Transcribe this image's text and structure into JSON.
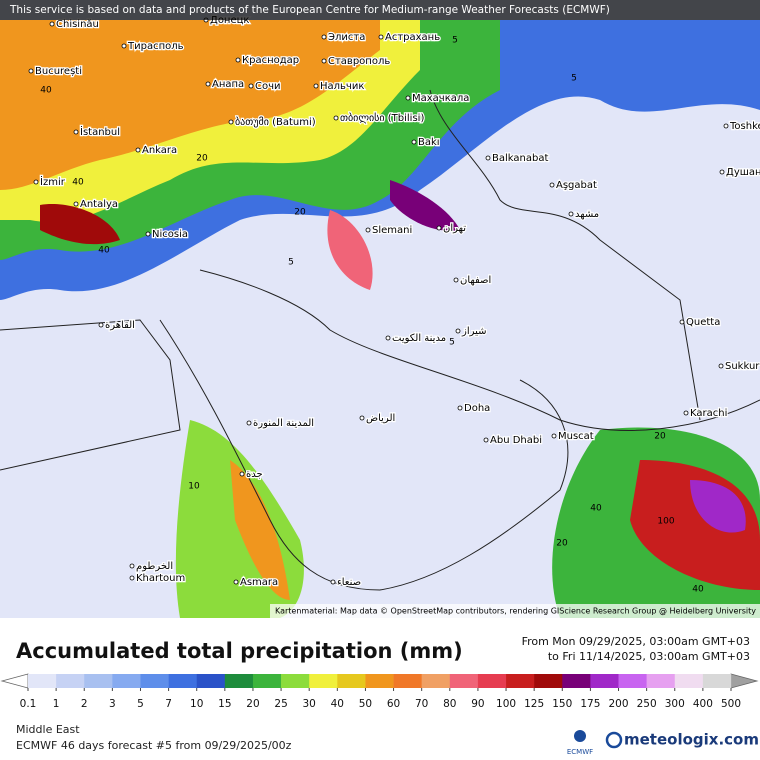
{
  "banner": "This service is based on data and products of the European Centre for Medium-range Weather Forecasts (ECMWF)",
  "attribution": "Kartenmaterial: Map data © OpenStreetMap contributors, rendering GIScience Research Group @ Heidelberg University",
  "map_labels": [
    "Chisinău",
    "Донецк",
    "Тирасполь",
    "București",
    "Краснодар",
    "Элиста",
    "Астрахань",
    "Анапа",
    "Сочи",
    "Нальчик",
    "Ставрополь",
    "Махачкала",
    "İstanbul",
    "ბათუმი (Batumi)",
    "თბილისი (Tbilisi)",
    "Bakı",
    "Ankara",
    "İzmir",
    "Antalya",
    "Nicosia",
    "Balkanabat",
    "Aşgabat",
    "Toshkent",
    "Душанбе",
    "Slemani",
    "تهران",
    "اصفهان",
    "شيراز",
    "مدينة الكويت",
    "الرياض",
    "Doha",
    "Abu Dhabi",
    "Muscat",
    "Karachi",
    "Quetta",
    "Sukkur",
    "المدينة المنورة",
    "جدة",
    "الخرطوم",
    "Khartoum",
    "Asmara",
    "صنعاء",
    "القاهرة",
    "مشهد"
  ],
  "contour_labels": [
    40,
    40,
    40,
    20,
    20,
    5,
    5,
    5,
    5,
    20,
    40,
    100,
    20,
    40,
    10
  ],
  "title": "Accumulated total precipitation (mm)",
  "period_from": "From Mon 09/29/2025, 03:00am GMT+03",
  "period_to": "to Fri 11/14/2025, 03:00am GMT+03",
  "legend": {
    "ticks": [
      0.1,
      1,
      2,
      3,
      5,
      7,
      10,
      15,
      20,
      25,
      30,
      40,
      50,
      60,
      70,
      80,
      90,
      100,
      125,
      150,
      175,
      200,
      250,
      300,
      400,
      500
    ],
    "colors": [
      "#e2e6f8",
      "#c6d2f4",
      "#a8c0f0",
      "#86aaf0",
      "#5e8eea",
      "#3e70e0",
      "#2a52c8",
      "#1e8c3c",
      "#3cb43c",
      "#8cdc3c",
      "#f0f03c",
      "#e6c81e",
      "#f0961e",
      "#f07828",
      "#f0a064",
      "#f06478",
      "#e63c50",
      "#c81e1e",
      "#a00a0a",
      "#780078",
      "#a028c8",
      "#c864f0",
      "#e6a0f0",
      "#f0dcf0",
      "#d8d8d8"
    ],
    "under_color": "#ffffff",
    "over_color": "#a0a0a0"
  },
  "region": "Middle East",
  "forecast": "ECMWF 46 days forecast #5 from  09/29/2025/00z",
  "logo_small": "ECMWF",
  "logo": "meteologix.com"
}
